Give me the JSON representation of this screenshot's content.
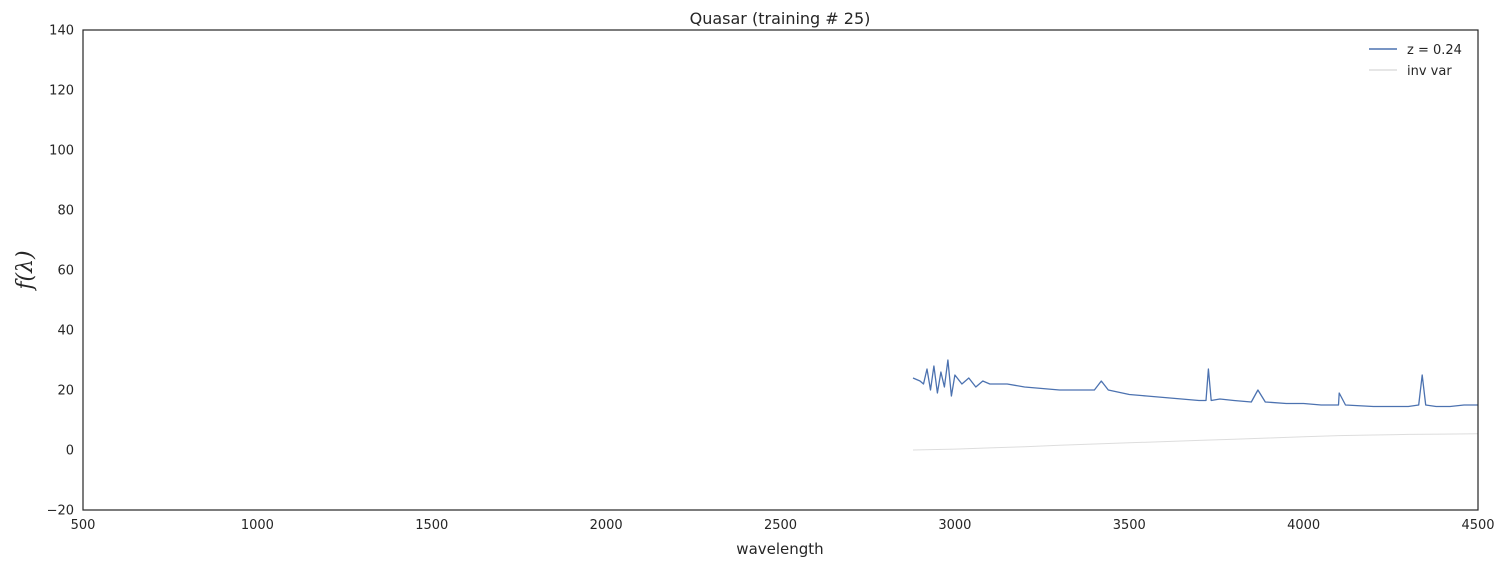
{
  "chart_data": {
    "type": "line",
    "title": "Quasar (training # 25)",
    "xlabel": "wavelength",
    "ylabel": "f(λ)",
    "xlim": [
      500,
      4500
    ],
    "ylim": [
      -20,
      140
    ],
    "xticks": [
      500,
      1000,
      1500,
      2000,
      2500,
      3000,
      3500,
      4000,
      4500
    ],
    "yticks": [
      -20,
      0,
      20,
      40,
      60,
      80,
      100,
      120,
      140
    ],
    "grid": false,
    "legend": "top-right",
    "series": [
      {
        "name": "z = 0.24",
        "color": "#4c72b0",
        "x": [
          2880,
          2900,
          2910,
          2920,
          2930,
          2940,
          2950,
          2960,
          2970,
          2980,
          2990,
          3000,
          3020,
          3040,
          3060,
          3080,
          3100,
          3150,
          3200,
          3250,
          3300,
          3350,
          3400,
          3420,
          3440,
          3500,
          3550,
          3600,
          3650,
          3700,
          3720,
          3727,
          3735,
          3760,
          3800,
          3850,
          3869,
          3890,
          3950,
          4000,
          4050,
          4100,
          4102,
          4120,
          4200,
          4250,
          4300,
          4330,
          4340,
          4350,
          4380,
          4420,
          4460,
          4500
        ],
        "y": [
          24,
          23,
          22,
          27,
          20,
          28,
          19,
          26,
          21,
          30,
          18,
          25,
          22,
          24,
          21,
          23,
          22,
          22,
          21,
          20.5,
          20,
          20,
          20,
          23,
          20,
          18.5,
          18,
          17.5,
          17,
          16.5,
          16.5,
          27,
          16.5,
          17,
          16.5,
          16,
          20,
          16,
          15.5,
          15.5,
          15,
          15,
          19,
          15,
          14.5,
          14.5,
          14.5,
          15,
          25,
          15,
          14.5,
          14.5,
          15,
          15
        ]
      },
      {
        "name": "inv var",
        "color": "#dddddd",
        "x": [
          2880,
          3000,
          3100,
          3200,
          3300,
          3400,
          3500,
          3600,
          3700,
          3800,
          3900,
          4000,
          4100,
          4200,
          4300,
          4400,
          4500
        ],
        "y": [
          0,
          0.3,
          0.7,
          1.1,
          1.6,
          2.0,
          2.4,
          2.8,
          3.2,
          3.6,
          4.0,
          4.4,
          4.8,
          5.0,
          5.2,
          5.3,
          5.4
        ]
      }
    ]
  }
}
